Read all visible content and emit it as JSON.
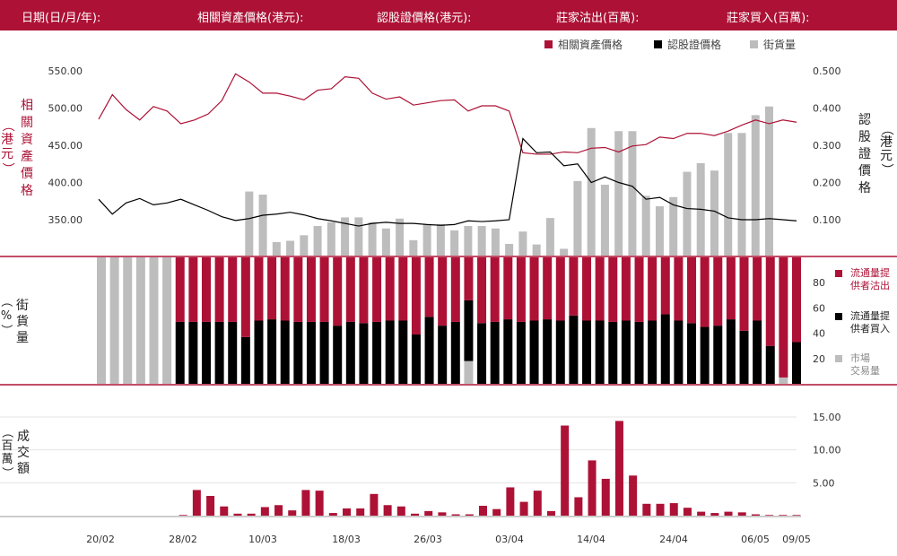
{
  "header": {
    "date_label": "日期(日/月/年):",
    "underlying_label": "相關資產價格(港元):",
    "warrant_label": "認股證價格(港元):",
    "dealer_sell_label": "莊家沽出(百萬):",
    "dealer_buy_label": "莊家買入(百萬):"
  },
  "colors": {
    "brand": "#ad1236",
    "warrant": "#000000",
    "street": "#bdbdbd",
    "axis": "#555555",
    "grid": "#e5e5e5"
  },
  "chart_data": [
    {
      "type": "line",
      "left_axis_label": [
        "相",
        "關",
        "資",
        "產",
        "價",
        "格"
      ],
      "left_axis_unit": [
        "（",
        "港",
        "元",
        "）"
      ],
      "right_axis_label": [
        "認",
        "股",
        "證",
        "價",
        "格"
      ],
      "right_axis_unit": [
        "（",
        "港",
        "元",
        "）"
      ],
      "legend": [
        {
          "label": "相關資產價格",
          "color": "#ad1236"
        },
        {
          "label": "認股證價格",
          "color": "#000000"
        },
        {
          "label": "街貨量",
          "color": "#bdbdbd"
        }
      ],
      "y_left": {
        "ticks": [
          "550.00",
          "500.00",
          "450.00",
          "400.00",
          "350.00"
        ],
        "values": [
          550,
          500,
          450,
          400,
          350
        ],
        "range": [
          300,
          560
        ]
      },
      "y_right": {
        "ticks": [
          "0.500",
          "0.400",
          "0.300",
          "0.200",
          "0.100"
        ],
        "values": [
          0.5,
          0.4,
          0.3,
          0.2,
          0.1
        ],
        "range": [
          0,
          0.52
        ]
      },
      "series": [
        {
          "name": "相關資產價格",
          "axis": "left",
          "values": [
            485,
            518,
            498,
            484,
            502,
            496,
            479,
            484,
            492,
            510,
            546,
            535,
            520,
            520,
            516,
            511,
            524,
            526,
            542,
            540,
            520,
            512,
            515,
            504,
            507,
            510,
            511,
            496,
            503,
            503,
            496,
            440,
            438,
            438,
            441,
            440,
            446,
            447,
            441,
            449,
            451,
            461,
            459,
            466,
            466,
            463,
            469,
            477,
            484,
            479,
            484,
            481
          ]
        },
        {
          "name": "認股證價格",
          "axis": "right",
          "values": [
            0.155,
            0.115,
            0.145,
            0.157,
            0.14,
            0.145,
            0.155,
            0.14,
            0.125,
            0.108,
            0.098,
            0.103,
            0.112,
            0.115,
            0.12,
            0.113,
            0.103,
            0.097,
            0.09,
            0.083,
            0.09,
            0.093,
            0.09,
            0.09,
            0.087,
            0.085,
            0.087,
            0.097,
            0.095,
            0.097,
            0.1,
            0.318,
            0.28,
            0.282,
            0.245,
            0.25,
            0.2,
            0.215,
            0.2,
            0.19,
            0.155,
            0.16,
            0.14,
            0.13,
            0.128,
            0.123,
            0.105,
            0.1,
            0.1,
            0.103,
            0.1,
            0.097
          ]
        },
        {
          "name": "街貨量",
          "axis": "volume",
          "values": [
            0,
            0,
            0,
            0,
            0,
            0,
            0,
            0,
            0,
            0,
            0,
            10.4,
            9.9,
            2.2,
            2.4,
            3.3,
            4.8,
            5.4,
            6.2,
            6.2,
            5.4,
            4.4,
            6.0,
            2.5,
            5.1,
            5.1,
            4.1,
            4.8,
            4.8,
            4.4,
            1.9,
            3.9,
            1.8,
            6.1,
            1.1,
            12.1,
            20.7,
            11.5,
            20.2,
            20.2,
            9.7,
            8.0,
            9.5,
            13.6,
            15.0,
            13.8,
            19.9,
            19.9,
            22.8,
            24.2,
            0,
            0
          ]
        }
      ]
    },
    {
      "type": "bar",
      "stacked": true,
      "left_axis_label": [
        "街",
        "貨",
        "量"
      ],
      "left_axis_unit": [
        "（",
        "%",
        "）"
      ],
      "y_right": {
        "ticks": [
          "80",
          "60",
          "40",
          "20"
        ],
        "values": [
          80,
          60,
          40,
          20
        ],
        "range": [
          0,
          100
        ]
      },
      "legend": [
        {
          "label": [
            "流通量提",
            "供者沽出"
          ],
          "color": "#ad1236"
        },
        {
          "label": [
            "流通量提",
            "供者買入"
          ],
          "color": "#000000"
        },
        {
          "label": [
            "市場",
            "交易量"
          ],
          "color": "#bdbdbd"
        }
      ],
      "series": [
        {
          "name": "流通量提供者買入",
          "values": [
            0,
            0,
            0,
            0,
            0,
            0,
            49,
            49,
            49,
            49,
            49,
            37,
            50,
            51,
            50,
            49,
            49,
            49,
            46,
            49,
            48,
            49,
            50,
            50,
            39,
            53,
            46,
            49,
            48,
            48,
            49,
            51,
            49,
            50,
            51,
            50,
            54,
            50,
            50,
            49,
            50,
            49,
            50,
            55,
            50,
            48,
            45,
            46,
            51,
            42,
            50,
            30,
            0,
            33
          ]
        },
        {
          "name": "流通量提供者沽出",
          "values": [
            0,
            0,
            0,
            0,
            0,
            0,
            51,
            51,
            51,
            51,
            51,
            63,
            50,
            49,
            50,
            51,
            51,
            51,
            54,
            51,
            52,
            51,
            50,
            50,
            61,
            47,
            54,
            51,
            52,
            52,
            51,
            49,
            51,
            50,
            49,
            50,
            46,
            50,
            50,
            51,
            50,
            51,
            50,
            45,
            50,
            52,
            55,
            54,
            49,
            58,
            50,
            70,
            95,
            67
          ]
        },
        {
          "name": "市場交易量",
          "values": [
            100,
            100,
            100,
            100,
            100,
            100,
            0,
            0,
            0,
            0,
            0,
            0,
            0,
            0,
            0,
            0,
            0,
            0,
            0,
            0,
            0,
            0,
            0,
            0,
            0,
            0,
            0,
            0,
            18,
            0,
            0,
            0,
            0,
            0,
            0,
            0,
            0,
            0,
            0,
            0,
            0,
            0,
            0,
            0,
            0,
            0,
            0,
            0,
            0,
            0,
            0,
            0,
            5,
            0
          ]
        }
      ]
    },
    {
      "type": "bar",
      "left_axis_label": [
        "成",
        "交",
        "額"
      ],
      "left_axis_unit": [
        "（",
        "百",
        "萬",
        "）"
      ],
      "y_right": {
        "ticks": [
          "15.00",
          "10.00",
          "5.00"
        ],
        "values": [
          15,
          10,
          5
        ],
        "range": [
          0,
          17
        ]
      },
      "x_ticks": [
        "20/02",
        "28/02",
        "10/03",
        "18/03",
        "26/03",
        "03/04",
        "14/04",
        "24/04",
        "06/05",
        "09/05"
      ],
      "series": [
        {
          "name": "成交額",
          "values": [
            0,
            0,
            0,
            0,
            0,
            0,
            0.1,
            3.9,
            3.0,
            1.4,
            0.3,
            0.3,
            1.3,
            1.6,
            0.8,
            3.9,
            3.8,
            0.4,
            1.1,
            1.1,
            3.3,
            1.6,
            1.4,
            0.3,
            0.7,
            0.5,
            0.2,
            0.2,
            1.5,
            1.0,
            4.3,
            2.1,
            3.8,
            0.7,
            13.7,
            2.8,
            8.4,
            5.6,
            14.4,
            6.1,
            1.8,
            1.8,
            1.9,
            1.2,
            0.6,
            0.4,
            0.6,
            0.5,
            0.2,
            0.1,
            0.1,
            0.1
          ]
        }
      ]
    }
  ]
}
